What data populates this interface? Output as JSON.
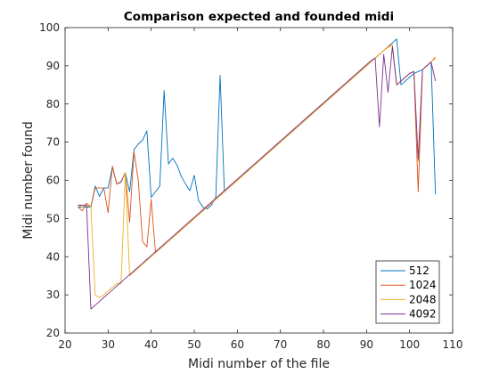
{
  "chart_data": {
    "type": "line",
    "title": "Comparison expected and founded midi",
    "xlabel": "Midi number of the file",
    "ylabel": "Midi number found",
    "xlim": [
      20,
      110
    ],
    "ylim": [
      20,
      100
    ],
    "xticks": [
      20,
      30,
      40,
      50,
      60,
      70,
      80,
      90,
      100,
      110
    ],
    "yticks": [
      20,
      30,
      40,
      50,
      60,
      70,
      80,
      90,
      100
    ],
    "grid": false,
    "legend_position": "bottom-right",
    "series": [
      {
        "name": "512",
        "color": "#0072BD",
        "x": [
          23,
          24,
          25,
          26,
          27,
          28,
          29,
          30,
          31,
          32,
          33,
          34,
          35,
          36,
          37,
          38,
          39,
          40,
          41,
          42,
          43,
          44,
          45,
          46,
          47,
          48,
          49,
          50,
          51,
          52,
          53,
          54,
          55,
          56,
          57,
          58,
          59,
          60,
          61,
          62,
          63,
          64,
          65,
          66,
          67,
          68,
          69,
          70,
          71,
          72,
          73,
          74,
          75,
          76,
          77,
          78,
          79,
          80,
          81,
          82,
          83,
          84,
          85,
          86,
          87,
          88,
          89,
          90,
          91,
          92,
          93,
          94,
          95,
          96,
          97,
          98,
          99,
          100,
          101,
          102,
          103,
          104,
          105,
          106
        ],
        "y": [
          53,
          53,
          53,
          53,
          58.5,
          55.8,
          58,
          58,
          63.5,
          59,
          59.5,
          62,
          57,
          68,
          69.5,
          70.5,
          73,
          55.5,
          57,
          58.5,
          83.5,
          64.3,
          65.8,
          64,
          61,
          59,
          57.3,
          61.3,
          54.7,
          53,
          52.5,
          53.5,
          55.5,
          87.5,
          57,
          58,
          59,
          60,
          61,
          62,
          63,
          64,
          65,
          66,
          67,
          68,
          69,
          70,
          71,
          72,
          73,
          74,
          75,
          76,
          77,
          78,
          79,
          80,
          81,
          82,
          83,
          84,
          85,
          86,
          87,
          88,
          89,
          90,
          91,
          92,
          93,
          94,
          95,
          96,
          97,
          85,
          86,
          87,
          88,
          88.5,
          89,
          90,
          91,
          56.3
        ]
      },
      {
        "name": "1024",
        "color": "#D95319",
        "x": [
          23,
          24,
          25,
          26,
          27,
          28,
          29,
          30,
          31,
          32,
          33,
          34,
          35,
          36,
          37,
          38,
          39,
          40,
          41,
          42,
          43,
          44,
          45,
          46,
          47,
          48,
          49,
          50,
          51,
          52,
          53,
          54,
          55,
          56,
          57,
          58,
          59,
          60,
          61,
          62,
          63,
          64,
          65,
          66,
          67,
          68,
          69,
          70,
          71,
          72,
          73,
          74,
          75,
          76,
          77,
          78,
          79,
          80,
          81,
          82,
          83,
          84,
          85,
          86,
          87,
          88,
          89,
          90,
          91,
          92,
          93,
          94,
          95,
          96,
          97,
          98,
          99,
          100,
          101,
          102,
          103,
          104,
          105,
          106
        ],
        "y": [
          53,
          52,
          54,
          53,
          58,
          58,
          58,
          51.5,
          63.7,
          59,
          59.7,
          62,
          49,
          67.5,
          60,
          44,
          42.5,
          55,
          41,
          42,
          43,
          44,
          45,
          46,
          47,
          48,
          49,
          50,
          51,
          52,
          53,
          54,
          55,
          56,
          57,
          58,
          59,
          60,
          61,
          62,
          63,
          64,
          65,
          66,
          67,
          68,
          69,
          70,
          71,
          72,
          73,
          74,
          75,
          76,
          77,
          78,
          79,
          80,
          81,
          82,
          83,
          84,
          85,
          86,
          87,
          88,
          89,
          90,
          91,
          92,
          93,
          94,
          95,
          95.5,
          85,
          86,
          87,
          88,
          88.5,
          57,
          89,
          90,
          91,
          92.3
        ]
      },
      {
        "name": "2048",
        "color": "#EDB120",
        "x": [
          23,
          24,
          25,
          26,
          27,
          28,
          29,
          30,
          31,
          32,
          33,
          34,
          35,
          36,
          37,
          38,
          39,
          40,
          41,
          42,
          43,
          44,
          45,
          46,
          47,
          48,
          49,
          50,
          51,
          52,
          53,
          54,
          55,
          56,
          57,
          58,
          59,
          60,
          61,
          62,
          63,
          64,
          65,
          66,
          67,
          68,
          69,
          70,
          71,
          72,
          73,
          74,
          75,
          76,
          77,
          78,
          79,
          80,
          81,
          82,
          83,
          84,
          85,
          86,
          87,
          88,
          89,
          90,
          91,
          92,
          93,
          94,
          95,
          96,
          97,
          98,
          99,
          100,
          101,
          102,
          103,
          104,
          105,
          106
        ],
        "y": [
          53.5,
          53,
          53.5,
          53,
          30,
          29.3,
          30,
          31,
          32,
          33,
          33,
          62,
          35,
          36,
          37,
          38,
          39,
          40,
          41,
          42,
          43,
          44,
          45,
          46,
          47,
          48,
          49,
          50,
          51,
          52,
          53,
          54,
          55,
          56,
          57,
          58,
          59,
          60,
          61,
          62,
          63,
          64,
          65,
          66,
          67,
          68,
          69,
          70,
          71,
          72,
          73,
          74,
          75,
          76,
          77,
          78,
          79,
          80,
          81,
          82,
          83,
          84,
          85,
          86,
          87,
          88,
          89,
          90,
          91,
          92,
          93,
          94,
          94.8,
          95.5,
          85,
          86,
          87,
          88,
          88.5,
          65,
          89,
          90,
          91,
          92
        ]
      },
      {
        "name": "4092",
        "color": "#7E2F8E",
        "x": [
          23,
          24,
          25,
          26,
          27,
          28,
          29,
          30,
          31,
          32,
          33,
          34,
          35,
          36,
          37,
          38,
          39,
          40,
          41,
          42,
          43,
          44,
          45,
          46,
          47,
          48,
          49,
          50,
          51,
          52,
          53,
          54,
          55,
          56,
          57,
          58,
          59,
          60,
          61,
          62,
          63,
          64,
          65,
          66,
          67,
          68,
          69,
          70,
          71,
          72,
          73,
          74,
          75,
          76,
          77,
          78,
          79,
          80,
          81,
          82,
          83,
          84,
          85,
          86,
          87,
          88,
          89,
          90,
          91,
          92,
          93,
          94,
          95,
          96,
          97,
          98,
          99,
          100,
          101,
          102,
          103,
          104,
          105,
          106
        ],
        "y": [
          53.5,
          53.5,
          53.5,
          26.3,
          27.3,
          28.3,
          29.3,
          30.3,
          31.3,
          32.3,
          33.3,
          34.3,
          35.3,
          36.3,
          37.3,
          38.3,
          39.3,
          40.3,
          41.3,
          42.3,
          43.3,
          44.3,
          45.3,
          46.3,
          47.3,
          48.3,
          49.3,
          50.3,
          51.3,
          52.3,
          53.3,
          54.3,
          55.3,
          56.3,
          57.3,
          58.3,
          59.3,
          60.3,
          61.3,
          62.3,
          63.3,
          64.3,
          65.3,
          66.3,
          67.3,
          68.3,
          69.3,
          70.3,
          71.3,
          72.3,
          73.3,
          74.3,
          75.3,
          76.3,
          77.3,
          78.3,
          79.3,
          80.3,
          81.3,
          82.3,
          83.3,
          84.3,
          85.3,
          86.3,
          87.3,
          88.3,
          89.3,
          90.3,
          91.3,
          92,
          74,
          93,
          83,
          95,
          85,
          86,
          87,
          88,
          88.5,
          65.5,
          89,
          90,
          91,
          86
        ]
      }
    ]
  }
}
